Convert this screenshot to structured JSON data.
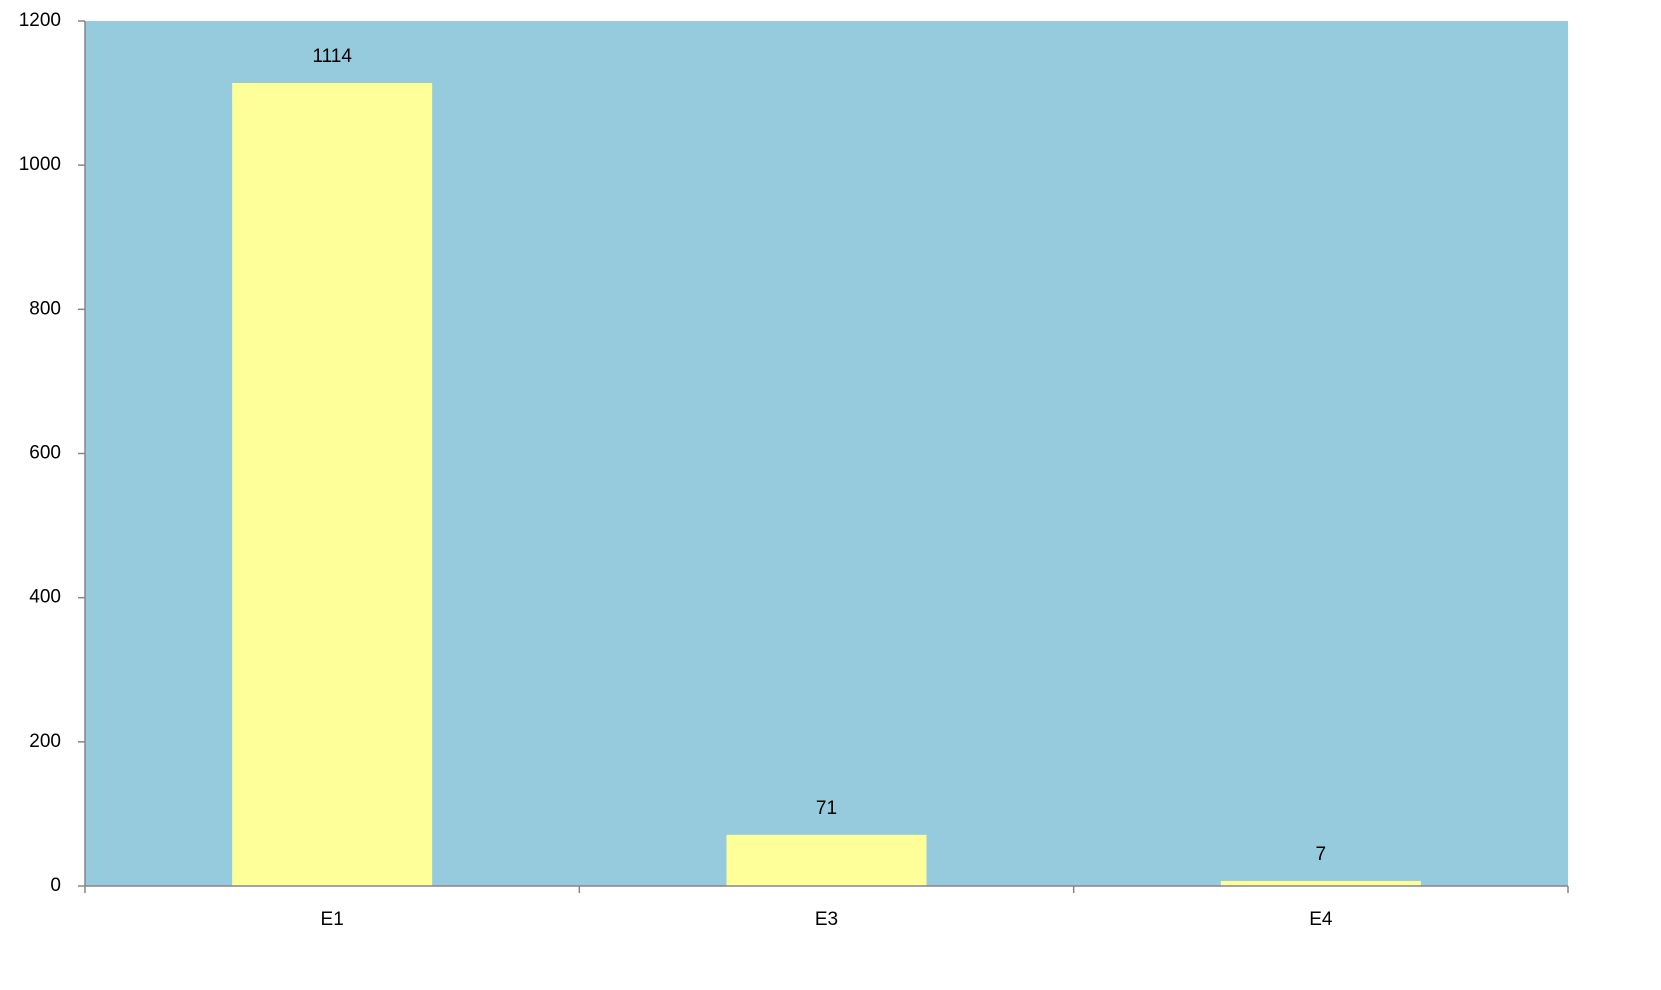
{
  "chart_data": {
    "type": "bar",
    "categories": [
      "E1",
      "E3",
      "E4"
    ],
    "values": [
      1114,
      71,
      7
    ],
    "color": "#ffff99",
    "background": "#95cbdc",
    "ylim": [
      0,
      1200
    ],
    "yticks": [
      0,
      200,
      400,
      600,
      800,
      1000,
      1200
    ],
    "grid": false,
    "data_labels": true
  }
}
